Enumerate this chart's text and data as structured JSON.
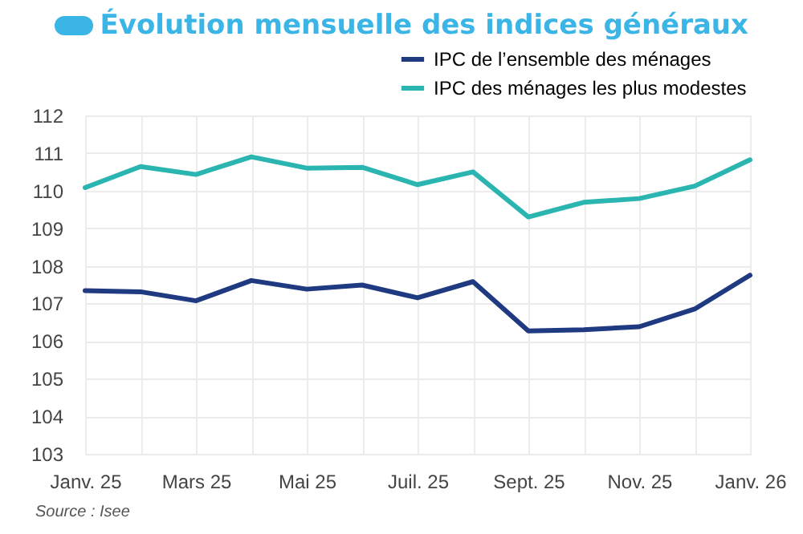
{
  "chart_data": {
    "type": "line",
    "title": "Évolution mensuelle des indices généraux",
    "categories": [
      "Janv. 25",
      null,
      "Mars 25",
      null,
      "Mai 25",
      null,
      "Juil. 25",
      null,
      "Sept. 25",
      null,
      "Nov. 25",
      null,
      "Janv. 26"
    ],
    "series": [
      {
        "name": "IPC de l’ensemble des ménages",
        "color": "#1f3a80",
        "values": [
          107.34,
          107.31,
          107.07,
          107.61,
          107.38,
          107.49,
          107.15,
          107.58,
          106.27,
          106.3,
          106.38,
          106.85,
          107.75
        ]
      },
      {
        "name": "IPC des ménages les plus modestes",
        "color": "#2bb5b0",
        "values": [
          110.08,
          110.64,
          110.43,
          110.9,
          110.6,
          110.62,
          110.16,
          110.5,
          109.3,
          109.69,
          109.79,
          110.12,
          110.82
        ]
      }
    ],
    "ylim": [
      103,
      112
    ],
    "yticks": [
      103,
      104,
      105,
      106,
      107,
      108,
      109,
      110,
      111,
      112
    ],
    "grid": true,
    "legend": "top right",
    "marker": "none",
    "line_style": "solid",
    "annotations": [
      "Source : Isee"
    ]
  }
}
